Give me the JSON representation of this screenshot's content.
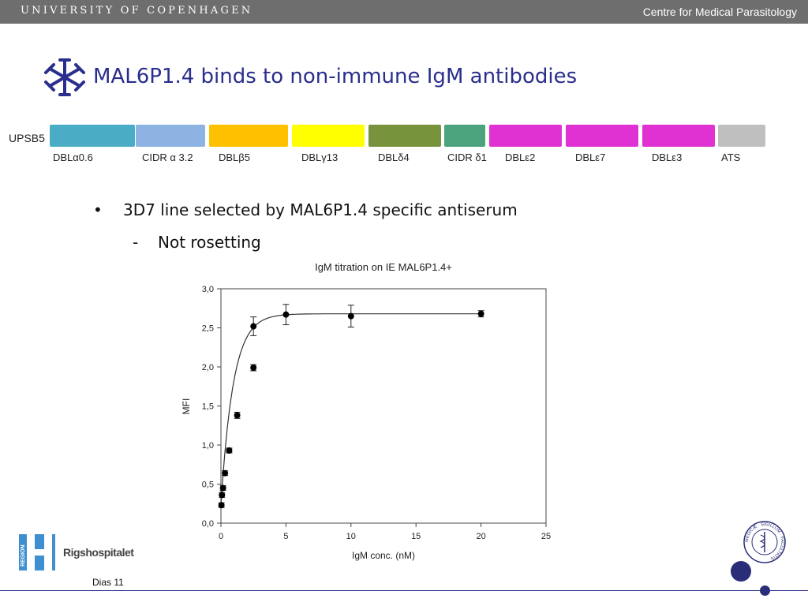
{
  "header": {
    "university": "UNIVERSITY OF COPENHAGEN",
    "department": "Centre for Medical Parasitology"
  },
  "slide": {
    "title": "MAL6P1.4 binds to non-immune IgM antibodies"
  },
  "domain_map": {
    "label": "UPSB5",
    "domains": [
      {
        "name": "DBLα0.6",
        "color": "#4bacc6"
      },
      {
        "name": "CIDR α 3.2",
        "color": "#8db3e2"
      },
      {
        "name": "DBLβ5",
        "color": "#ffc000"
      },
      {
        "name": "DBLγ13",
        "color": "#ffff00"
      },
      {
        "name": "DBLδ4",
        "color": "#77933c"
      },
      {
        "name": "CIDR δ1",
        "color": "#4aa37d"
      },
      {
        "name": "DBLε2",
        "color": "#e032d2"
      },
      {
        "name": "DBLε7",
        "color": "#e032d2"
      },
      {
        "name": "DBLε3",
        "color": "#e032d2"
      },
      {
        "name": "ATS",
        "color": "#bfbfbf"
      }
    ]
  },
  "bullets": {
    "main": "3D7 line selected by MAL6P1.4 specific antiserum",
    "sub": "Not rosetting",
    "bullet_symbol": "•",
    "dash_symbol": "-"
  },
  "chart_data": {
    "type": "scatter",
    "title": "IgM titration on IE MAL6P1.4+",
    "xlabel": "IgM conc. (nM)",
    "ylabel": "MFI",
    "xlim": [
      0,
      25
    ],
    "ylim": [
      0,
      3.0
    ],
    "xticks": [
      "0",
      "5",
      "10",
      "15",
      "20",
      "25"
    ],
    "yticks": [
      "0,0",
      "0,5",
      "1,0",
      "1,5",
      "2,0",
      "2,5",
      "3,0"
    ],
    "grid": false,
    "fit_line": true,
    "points": [
      {
        "x": 0.04,
        "y": 0.23,
        "err": 0.03
      },
      {
        "x": 0.08,
        "y": 0.36,
        "err": 0.03
      },
      {
        "x": 0.16,
        "y": 0.45,
        "err": 0.03
      },
      {
        "x": 0.31,
        "y": 0.64,
        "err": 0.03
      },
      {
        "x": 0.63,
        "y": 0.93,
        "err": 0.03
      },
      {
        "x": 0.63,
        "y": 0.93,
        "err": 0.03
      },
      {
        "x": 1.25,
        "y": 1.38,
        "err": 0.04
      },
      {
        "x": 2.5,
        "y": 1.99,
        "err": 0.04
      },
      {
        "x": 2.5,
        "y": 2.52,
        "err": 0.12
      },
      {
        "x": 5,
        "y": 2.67,
        "err": 0.13
      },
      {
        "x": 10,
        "y": 2.65,
        "err": 0.14
      },
      {
        "x": 20,
        "y": 2.68,
        "err": 0.04
      }
    ]
  },
  "footer": {
    "region_text": "REGION",
    "hospital": "Rigshospitalet",
    "page": "Dias 11",
    "seal_text": "MEDICÆ · SIGILLUM · FACULTATIS"
  },
  "colors": {
    "topbar": "#6e6e6e",
    "title": "#2a2e8c",
    "region_blue": "#3f8fd0",
    "accent_dark": "#2a2e78"
  }
}
